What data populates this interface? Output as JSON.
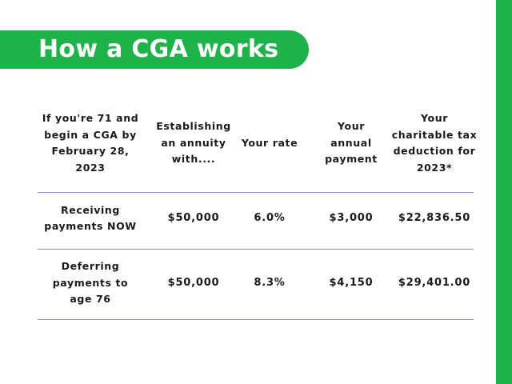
{
  "title": "How a CGA works",
  "table": {
    "headers": [
      "If you're 71 and\nbegin a CGA by\nFebruary 28,\n2023",
      "Establishing\nan annuity\nwith....",
      "Your rate",
      "Your\nannual\npayment",
      "Your\ncharitable tax\ndeduction for\n2023*"
    ],
    "rows": [
      {
        "label": "Receiving\npayments NOW",
        "amount": "$50,000",
        "rate": "6.0%",
        "payment": "$3,000",
        "deduction": "$22,836.50"
      },
      {
        "label": "Deferring\npayments to\nage 76",
        "amount": "$50,000",
        "rate": "8.3%",
        "payment": "$4,150",
        "deduction": "$29,401.00"
      }
    ]
  },
  "colors": {
    "accent_green": "#1fb24a",
    "divider": "#8c88c8",
    "text": "#1a1a1a"
  }
}
